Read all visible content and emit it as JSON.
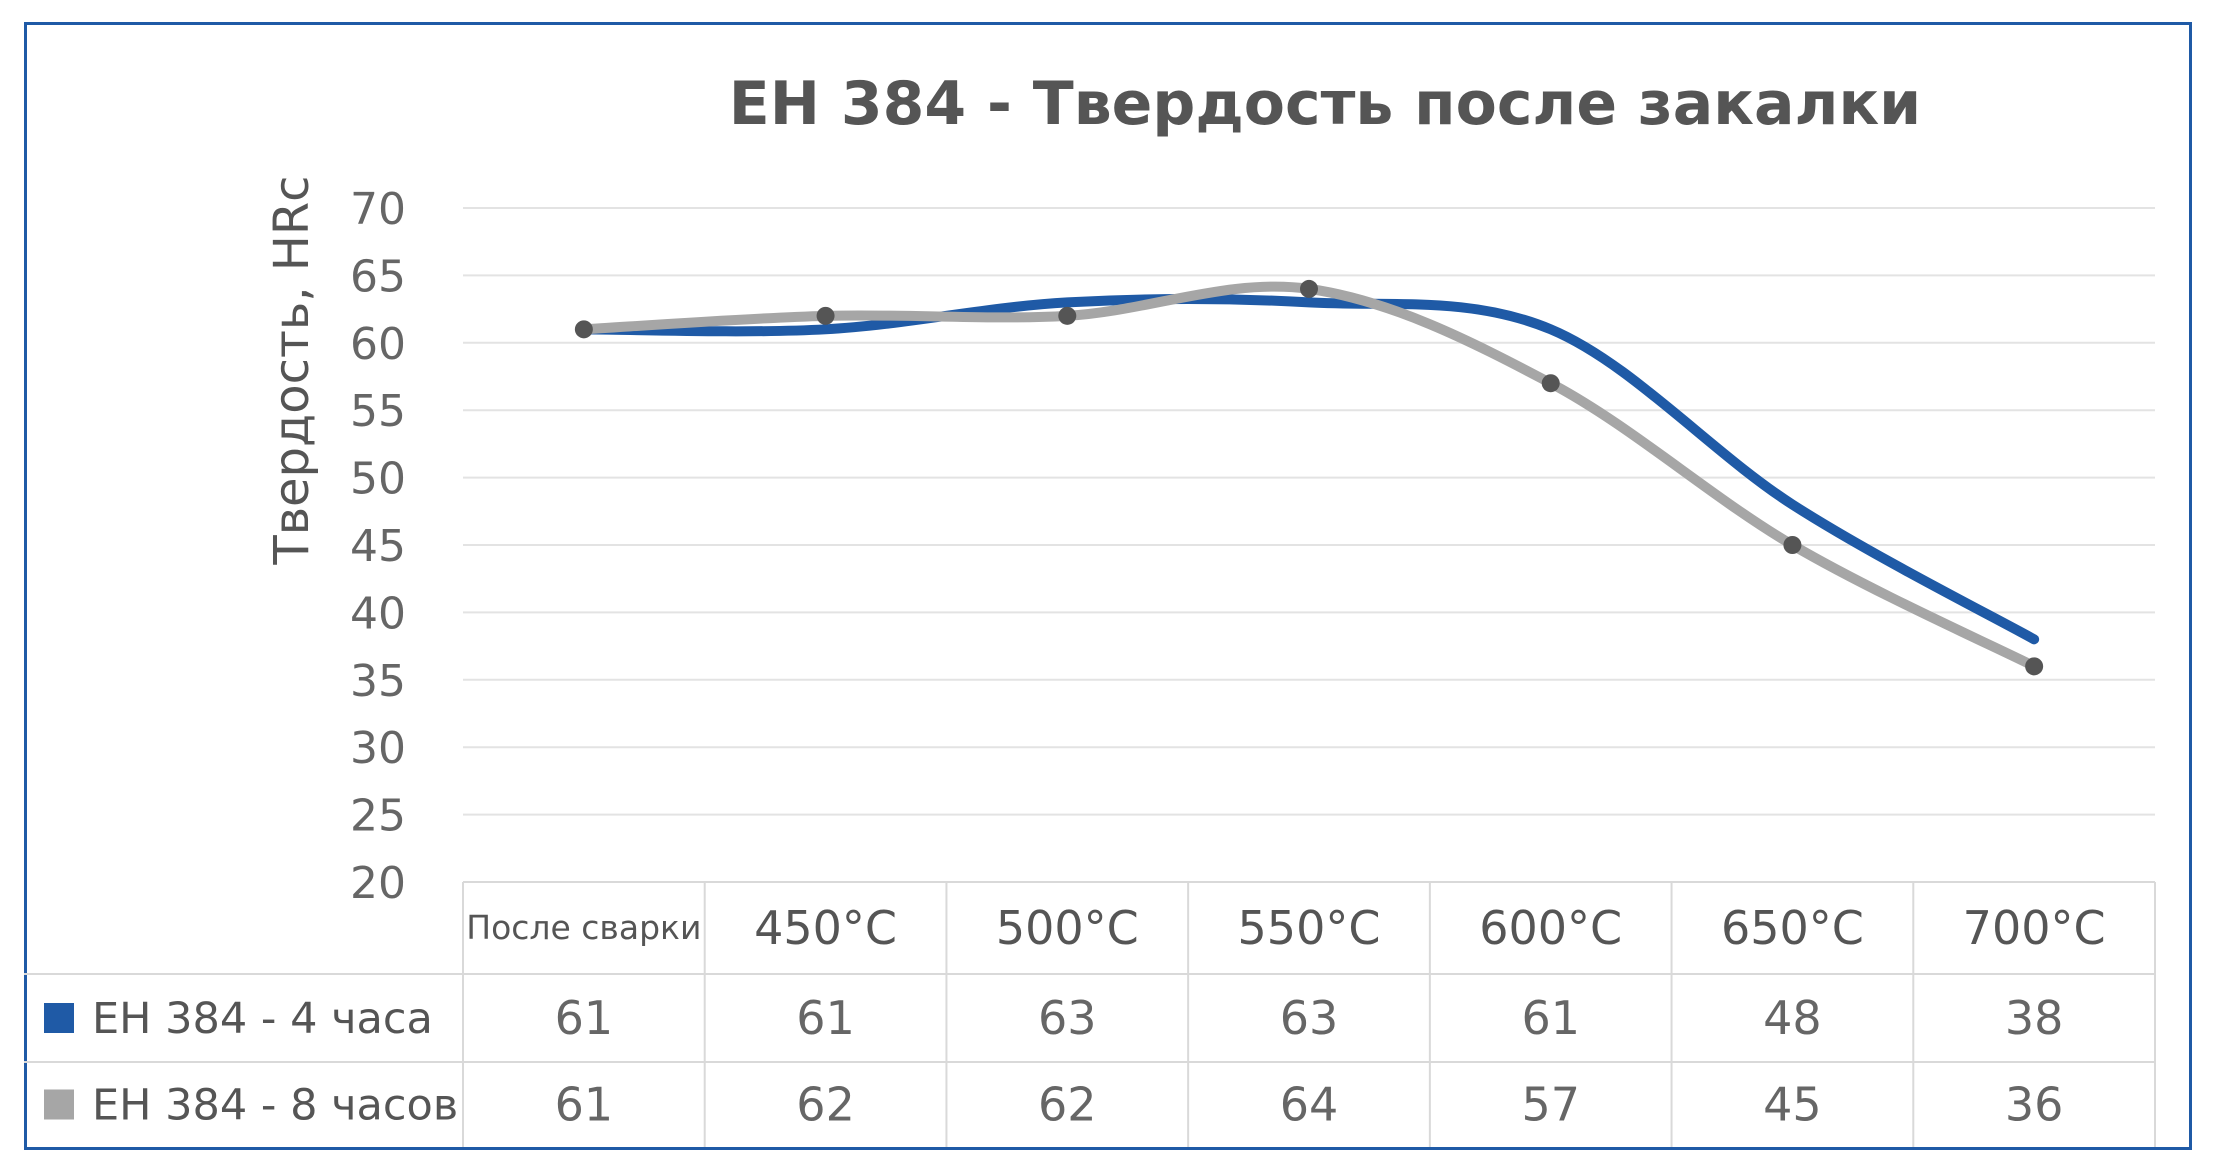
{
  "chart_data": {
    "type": "line",
    "title": "ЕН 384 - Твердость после закалки",
    "ylabel": "Твердость, HRc",
    "xlabel": "",
    "ylim": [
      20,
      70
    ],
    "yticks": [
      70,
      65,
      60,
      55,
      50,
      45,
      40,
      35,
      30,
      25,
      20
    ],
    "categories": [
      "После сварки",
      "450°C",
      "500°C",
      "550°C",
      "600°C",
      "650°C",
      "700°C"
    ],
    "series": [
      {
        "name": "ЕН 384 - 4 часа",
        "values": [
          61,
          61,
          63,
          63,
          61,
          48,
          38
        ],
        "color": "#1f5aa6",
        "markers": false
      },
      {
        "name": "ЕН 384 - 8 часов",
        "values": [
          61,
          62,
          62,
          64,
          57,
          45,
          36
        ],
        "color": "#a6a6a6",
        "markers": true,
        "marker_color": "#555555"
      }
    ],
    "grid": true,
    "smooth": true,
    "data_table": true
  }
}
